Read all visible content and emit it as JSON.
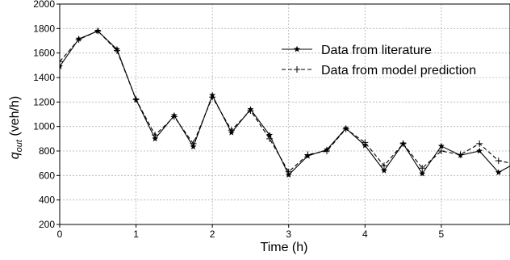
{
  "chart_data": {
    "type": "line",
    "xlabel": "Time (h)",
    "ylabel_main": "q",
    "ylabel_sub": "out",
    "ylabel_unit": " (veh/h)",
    "xlim": [
      0,
      5.9
    ],
    "ylim": [
      200,
      2000
    ],
    "x_ticks": [
      0,
      1,
      2,
      3,
      4,
      5
    ],
    "y_ticks": [
      200,
      400,
      600,
      800,
      1000,
      1200,
      1400,
      1600,
      1800,
      2000
    ],
    "grid": true,
    "legend_position": "upper-right",
    "series": [
      {
        "name": "Data from literature",
        "line_style": "solid",
        "marker": "star",
        "x": [
          0,
          0.25,
          0.5,
          0.75,
          1.0,
          1.25,
          1.5,
          1.75,
          2.0,
          2.25,
          2.5,
          2.75,
          3.0,
          3.25,
          3.5,
          3.75,
          4.0,
          4.25,
          4.5,
          4.75,
          5.0,
          5.25,
          5.5,
          5.75,
          6.0
        ],
        "values": [
          1490,
          1715,
          1780,
          1630,
          1220,
          900,
          1090,
          835,
          1255,
          950,
          1140,
          930,
          605,
          760,
          810,
          985,
          845,
          640,
          860,
          615,
          840,
          765,
          800,
          625,
          710
        ]
      },
      {
        "name": "Data from model prediction",
        "line_style": "dashed",
        "marker": "plus",
        "x": [
          0,
          0.25,
          0.5,
          0.75,
          1.0,
          1.25,
          1.5,
          1.75,
          2.0,
          2.25,
          2.5,
          2.75,
          3.0,
          3.25,
          3.5,
          3.75,
          4.0,
          4.25,
          4.5,
          4.75,
          5.0,
          5.25,
          5.5,
          5.75,
          6.0
        ],
        "values": [
          1530,
          1710,
          1780,
          1620,
          1220,
          930,
          1080,
          860,
          1240,
          970,
          1130,
          900,
          630,
          770,
          800,
          980,
          870,
          680,
          860,
          660,
          800,
          770,
          860,
          720,
          690
        ]
      }
    ]
  }
}
